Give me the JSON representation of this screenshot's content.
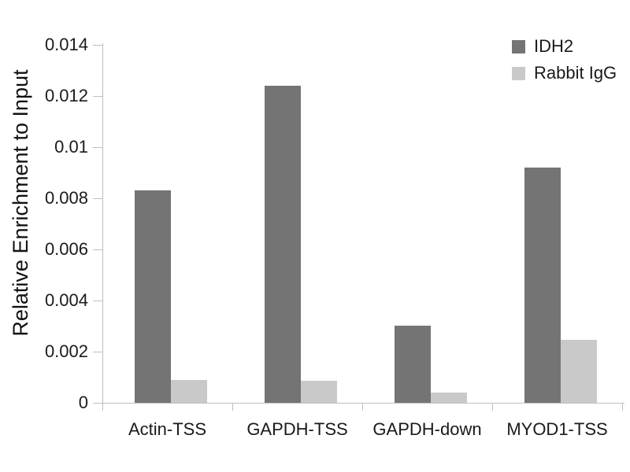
{
  "chart_data": {
    "type": "bar",
    "title": "",
    "xlabel": "",
    "ylabel": "Relative Enrichment to Input",
    "categories": [
      "Actin-TSS",
      "GAPDH-TSS",
      "GAPDH-down",
      "MYOD1-TSS"
    ],
    "series": [
      {
        "name": "IDH2",
        "color": "#747474",
        "values": [
          0.0083,
          0.0124,
          0.003,
          0.0092
        ]
      },
      {
        "name": "Rabbit IgG",
        "color": "#c9c9c9",
        "values": [
          0.0009,
          0.00085,
          0.0004,
          0.00245
        ]
      }
    ],
    "ylim": [
      0,
      0.014
    ],
    "ytick_labels": [
      "0",
      "0.002",
      "0.004",
      "0.006",
      "0.008",
      "0.01",
      "0.012",
      "0.014"
    ],
    "grid": false,
    "legend_position": "top-right",
    "axis_color": "#bfbfbf",
    "text_color": "#1a1a1a",
    "background_color": "#ffffff"
  }
}
